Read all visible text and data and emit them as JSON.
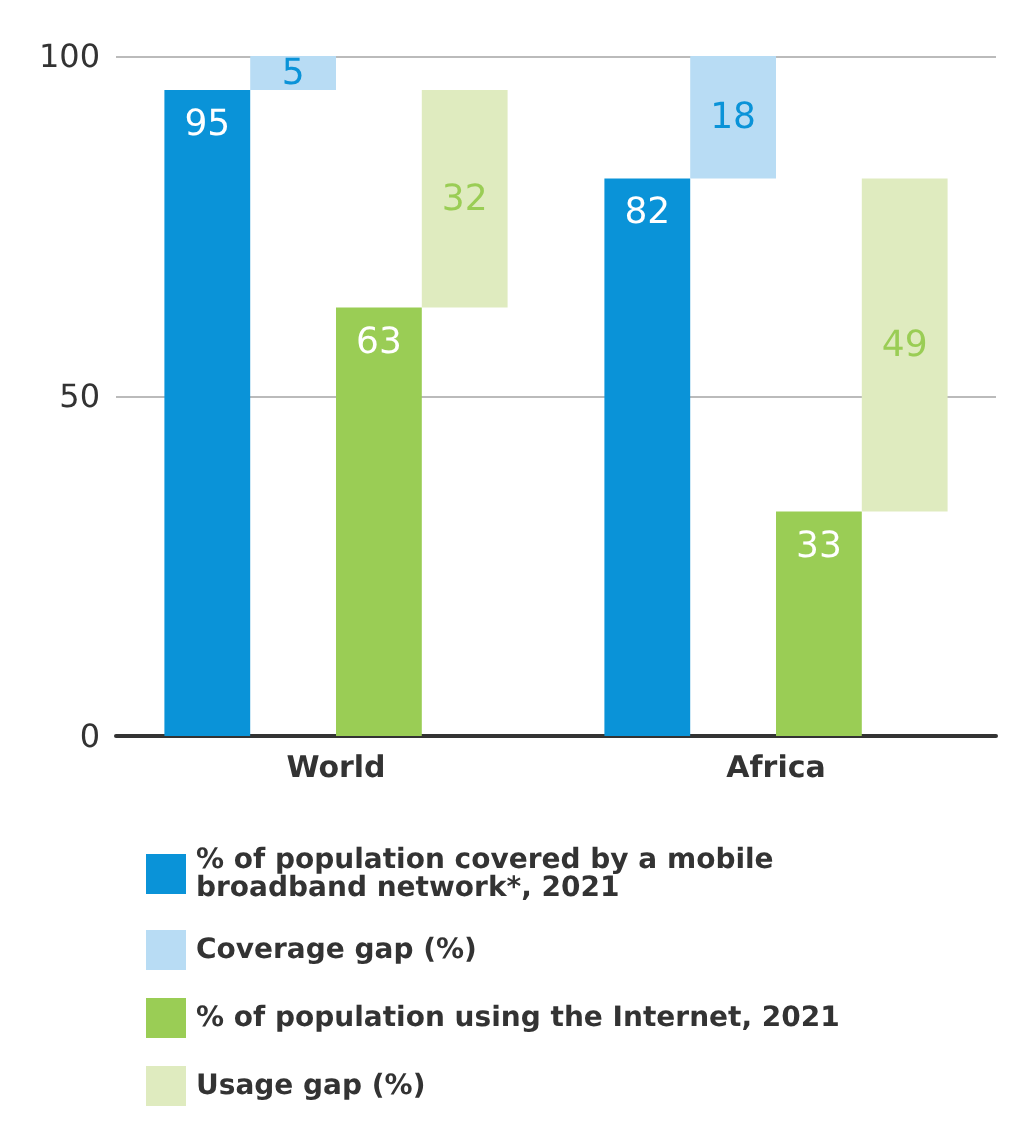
{
  "chart_data": {
    "type": "bar",
    "categories": [
      "World",
      "Africa"
    ],
    "series": [
      {
        "name": "% of population covered by a mobile broadband network*, 2021",
        "color": "#0a93d8",
        "values": [
          95,
          82
        ]
      },
      {
        "name": "Coverage gap (%)",
        "color": "#b8dcf4",
        "values": [
          5,
          18
        ],
        "base": [
          95,
          82
        ]
      },
      {
        "name": "% of population using the Internet, 2021",
        "color": "#9acd55",
        "values": [
          63,
          33
        ]
      },
      {
        "name": "Usage gap (%)",
        "color": "#dfebbf",
        "values": [
          32,
          49
        ],
        "base": [
          63,
          33
        ]
      }
    ],
    "ylim": [
      0,
      100
    ],
    "yticks": [
      0,
      50,
      100
    ],
    "grid": "y",
    "data_labels": true,
    "legend": "bottom"
  }
}
